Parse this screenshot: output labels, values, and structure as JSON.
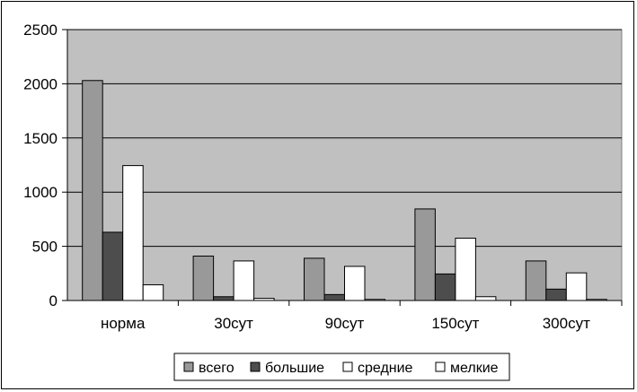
{
  "chart_data": {
    "type": "bar",
    "categories": [
      "норма",
      "30сут",
      "90сут",
      "150сут",
      "300сут"
    ],
    "series": [
      {
        "name": "всего",
        "color": "#999999",
        "values": [
          2030,
          410,
          390,
          845,
          365
        ]
      },
      {
        "name": "большие",
        "color": "#4d4d4d",
        "values": [
          630,
          35,
          55,
          245,
          105
        ]
      },
      {
        "name": "средние",
        "color": "#ffffff",
        "values": [
          1245,
          365,
          315,
          575,
          255
        ]
      },
      {
        "name": "мелкие",
        "color": "#ffffff",
        "values": [
          145,
          20,
          10,
          35,
          10
        ]
      }
    ],
    "yticks": [
      0,
      500,
      1000,
      1500,
      2000,
      2500
    ],
    "ylim": [
      0,
      2500
    ],
    "grid": true,
    "plot_background": "#c0c0c0",
    "legend_position": "bottom"
  }
}
